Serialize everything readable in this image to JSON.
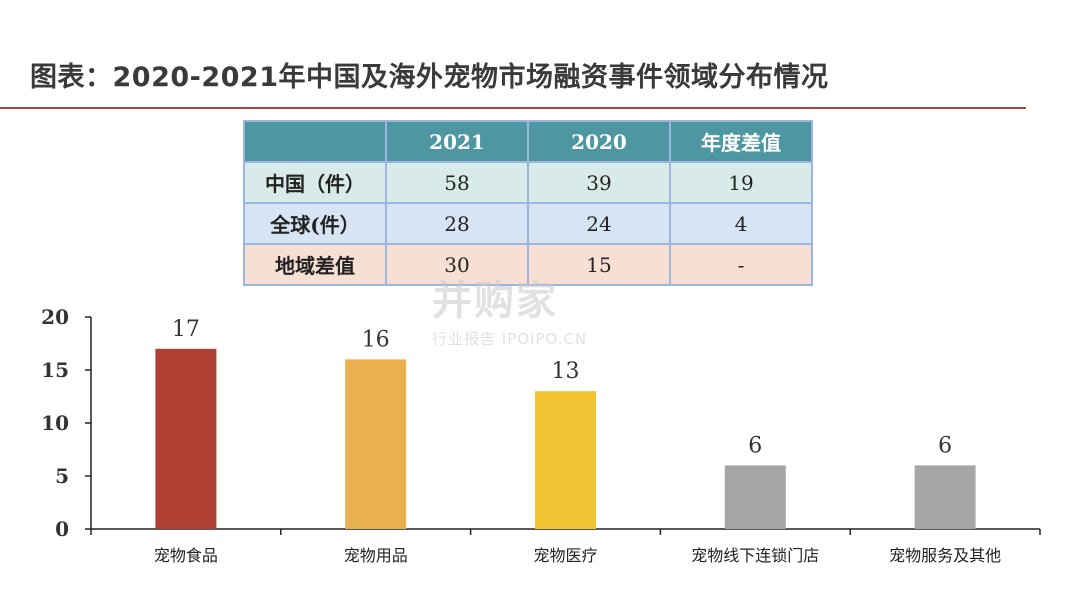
{
  "title": "图表：2020-2021年中国及海外宠物市场融资事件领域分布情况",
  "table": {
    "headers": [
      "",
      "2021",
      "2020",
      "年度差值"
    ],
    "rows": [
      [
        "中国（件）",
        "58",
        "39",
        "19"
      ],
      [
        "全球(件）",
        "28",
        "24",
        "4"
      ],
      [
        "地域差值",
        "30",
        "15",
        "-"
      ]
    ]
  },
  "watermark": {
    "main": "并购家",
    "sub": "行业报告 IPOIPO.CN"
  },
  "chart_data": {
    "type": "bar",
    "categories": [
      "宠物食品",
      "宠物用品",
      "宠物医疗",
      "宠物线下连锁门店",
      "宠物服务及其他"
    ],
    "values": [
      17,
      16,
      13,
      6,
      6
    ],
    "colors": [
      "#b03f34",
      "#e8b04e",
      "#f1c232",
      "#a6a6a6",
      "#a6a6a6"
    ],
    "ylim": [
      0,
      20
    ],
    "yticks": [
      0,
      5,
      10,
      15,
      20
    ],
    "title": "",
    "xlabel": "",
    "ylabel": ""
  }
}
